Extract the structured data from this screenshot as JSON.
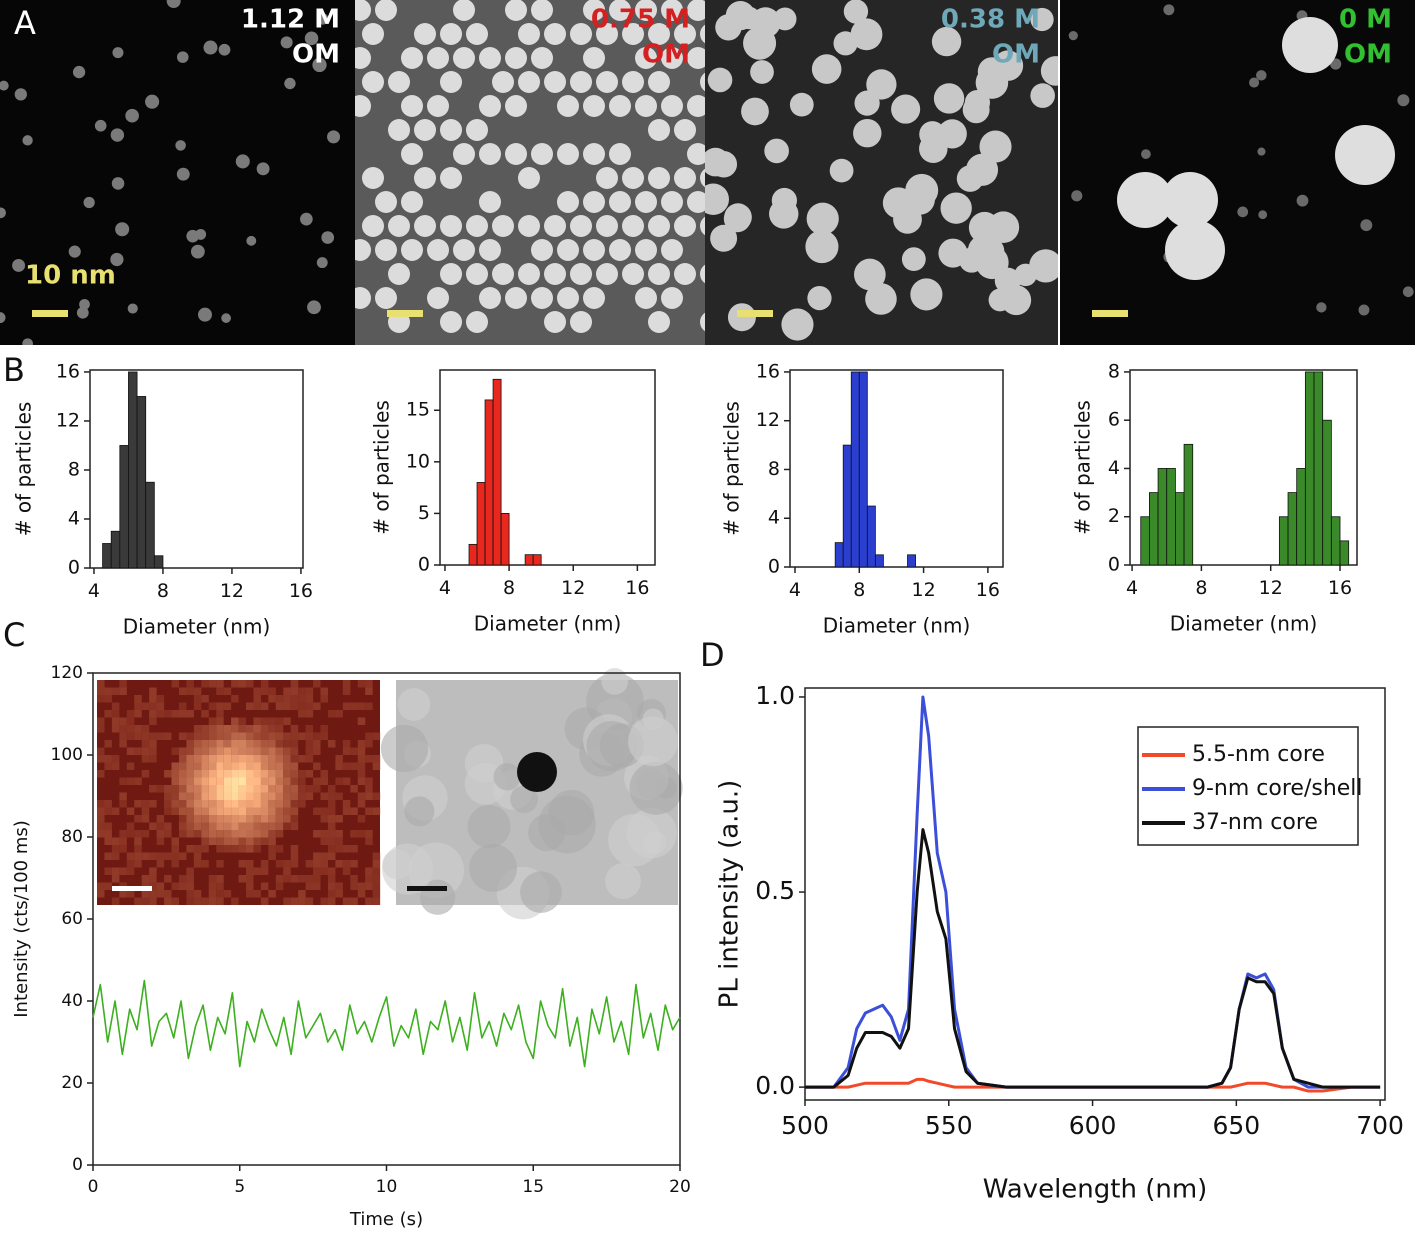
{
  "panel_labels": [
    "A",
    "B",
    "C",
    "D"
  ],
  "images": [
    {
      "concentration": "1.12 M",
      "solvent": "OM",
      "scale_bar": "10 nm"
    },
    {
      "concentration": "0.75 M",
      "solvent": "OM"
    },
    {
      "concentration": "0.38 M",
      "solvent": "OM"
    },
    {
      "concentration": "0 M",
      "solvent": "OM"
    }
  ],
  "chart_data": [
    {
      "type": "histogram",
      "x_label": "Diameter (nm)",
      "y_label": "# of particles",
      "color": "#3a3a3a",
      "bins": [
        4.5,
        5,
        5.5,
        6,
        6.5,
        7,
        7.5,
        8
      ],
      "values": [
        2,
        3,
        10,
        16,
        14,
        7,
        1
      ],
      "xlim": [
        3.77,
        16.12
      ],
      "xticks": [
        4,
        8,
        12,
        16
      ],
      "ylim": [
        0,
        16.16
      ],
      "yticks": [
        0,
        4,
        8,
        12,
        16
      ]
    },
    {
      "type": "histogram",
      "x_label": "Diameter (nm)",
      "y_label": "# of particles",
      "color": "#e8281e",
      "bins": [
        5.5,
        6,
        6.5,
        7,
        7.5,
        8,
        8.5,
        9,
        9.5,
        10
      ],
      "values": [
        2,
        8,
        16,
        18,
        5,
        0,
        0,
        1,
        1
      ],
      "xlim": [
        3.69,
        17.1
      ],
      "xticks": [
        4,
        8,
        12,
        16
      ],
      "ylim": [
        0,
        18.9
      ],
      "yticks": [
        0,
        5,
        10,
        15
      ]
    },
    {
      "type": "histogram",
      "x_label": "Diameter (nm)",
      "y_label": "# of particles",
      "color": "#2a3fd0",
      "bins": [
        6.5,
        7,
        7.5,
        8,
        8.5,
        9,
        9.5,
        10,
        10.5,
        11,
        11.5
      ],
      "values": [
        2,
        10,
        16,
        16,
        5,
        1,
        0,
        0,
        0,
        1
      ],
      "xlim": [
        3.69,
        16.94
      ],
      "xticks": [
        4,
        8,
        12,
        16
      ],
      "ylim": [
        0,
        16.16
      ],
      "yticks": [
        0,
        4,
        8,
        12,
        16
      ]
    },
    {
      "type": "histogram",
      "x_label": "Diameter (nm)",
      "y_label": "# of particles",
      "color": "#3a8a2a",
      "bins": [
        4.5,
        5,
        5.5,
        6,
        6.5,
        7,
        7.5,
        8,
        8.5,
        9,
        9.5,
        10,
        10.5,
        11,
        11.5,
        12,
        12.5,
        13,
        13.5,
        14,
        14.5,
        15,
        15.5,
        16,
        16.5
      ],
      "values": [
        2,
        3,
        4,
        4,
        3,
        5,
        0,
        0,
        0,
        0,
        0,
        0,
        0,
        0,
        0,
        0,
        2,
        3,
        4,
        8,
        8,
        6,
        2,
        1
      ],
      "xlim": [
        3.88,
        16.98
      ],
      "xticks": [
        4,
        8,
        12,
        16
      ],
      "ylim": [
        0,
        8.08
      ],
      "yticks": [
        0,
        2,
        4,
        6,
        8
      ]
    },
    {
      "type": "line",
      "x_label": "Time (s)",
      "y_label": "Intensity (cts/100 ms)",
      "color": "#3cb01e",
      "x": [
        0,
        0.25,
        0.5,
        0.75,
        1,
        1.25,
        1.5,
        1.75,
        2,
        2.25,
        2.5,
        2.75,
        3,
        3.25,
        3.5,
        3.75,
        4,
        4.25,
        4.5,
        4.75,
        5,
        5.25,
        5.5,
        5.75,
        6,
        6.25,
        6.5,
        6.75,
        7,
        7.25,
        7.5,
        7.75,
        8,
        8.25,
        8.5,
        8.75,
        9,
        9.25,
        9.5,
        9.75,
        10,
        10.25,
        10.5,
        10.75,
        11,
        11.25,
        11.5,
        11.75,
        12,
        12.25,
        12.5,
        12.75,
        13,
        13.25,
        13.5,
        13.75,
        14,
        14.25,
        14.5,
        14.75,
        15,
        15.25,
        15.5,
        15.75,
        16,
        16.25,
        16.5,
        16.75,
        17,
        17.25,
        17.5,
        17.75,
        18,
        18.25,
        18.5,
        18.75,
        19,
        19.25,
        19.5,
        19.75,
        20
      ],
      "values": [
        36,
        44,
        30,
        40,
        27,
        38,
        33,
        45,
        29,
        35,
        37,
        31,
        40,
        26,
        34,
        39,
        28,
        36,
        32,
        42,
        24,
        35,
        30,
        38,
        33,
        29,
        36,
        27,
        40,
        31,
        34,
        37,
        30,
        33,
        28,
        39,
        32,
        35,
        30,
        36,
        41,
        29,
        34,
        31,
        38,
        27,
        35,
        33,
        40,
        30,
        36,
        28,
        42,
        31,
        35,
        29,
        37,
        33,
        39,
        30,
        26,
        40,
        34,
        31,
        43,
        29,
        36,
        24,
        38,
        32,
        41,
        30,
        35,
        27,
        44,
        31,
        37,
        28,
        39,
        33,
        36
      ],
      "xlim": [
        0,
        20
      ],
      "xticks": [
        0,
        5,
        10,
        15,
        20
      ],
      "ylim": [
        0,
        120
      ],
      "yticks": [
        0,
        20,
        40,
        60,
        80,
        100,
        120
      ]
    },
    {
      "type": "line",
      "x_label": "Wavelength (nm)",
      "y_label": "PL intensity (a.u.)",
      "legend": "upper right",
      "x": [
        500,
        505,
        510,
        515,
        518,
        521,
        524,
        527,
        530,
        533,
        536,
        539,
        541,
        543,
        546,
        549,
        552,
        556,
        560,
        570,
        580,
        600,
        620,
        640,
        645,
        648,
        651,
        654,
        657,
        660,
        663,
        666,
        670,
        675,
        680,
        690,
        700
      ],
      "series": [
        {
          "name": "5.5-nm core",
          "color": "#f04a2a",
          "values": [
            0,
            0,
            0,
            0,
            0.005,
            0.01,
            0.01,
            0.01,
            0.01,
            0.01,
            0.01,
            0.02,
            0.02,
            0.015,
            0.01,
            0.005,
            0,
            0,
            0,
            0,
            0,
            0,
            0,
            0,
            0,
            0,
            0.005,
            0.01,
            0.01,
            0.01,
            0.005,
            0,
            0,
            -0.01,
            -0.01,
            0,
            0
          ]
        },
        {
          "name": "9-nm core/shell",
          "color": "#3b4fd8",
          "values": [
            0,
            0,
            0,
            0.05,
            0.15,
            0.19,
            0.2,
            0.21,
            0.18,
            0.12,
            0.2,
            0.7,
            1.0,
            0.9,
            0.6,
            0.5,
            0.2,
            0.05,
            0.01,
            0,
            0,
            0,
            0,
            0,
            0.01,
            0.05,
            0.2,
            0.29,
            0.28,
            0.29,
            0.25,
            0.1,
            0.02,
            0,
            0,
            0,
            0
          ]
        },
        {
          "name": "37-nm core",
          "color": "#111111",
          "values": [
            0,
            0,
            0,
            0.03,
            0.1,
            0.14,
            0.14,
            0.14,
            0.13,
            0.1,
            0.15,
            0.5,
            0.66,
            0.6,
            0.45,
            0.38,
            0.15,
            0.04,
            0.01,
            0,
            0,
            0,
            0,
            0,
            0.01,
            0.05,
            0.2,
            0.28,
            0.27,
            0.27,
            0.24,
            0.1,
            0.02,
            0.01,
            0,
            0,
            0
          ]
        }
      ],
      "xlim": [
        500,
        701.7
      ],
      "xticks": [
        500,
        550,
        600,
        650,
        700
      ],
      "ylim": [
        -0.033,
        1.023
      ],
      "yticks": [
        {
          "value": 0,
          "label": "0.0"
        },
        0.5,
        {
          "value": 1,
          "label": "1.0"
        }
      ]
    }
  ]
}
